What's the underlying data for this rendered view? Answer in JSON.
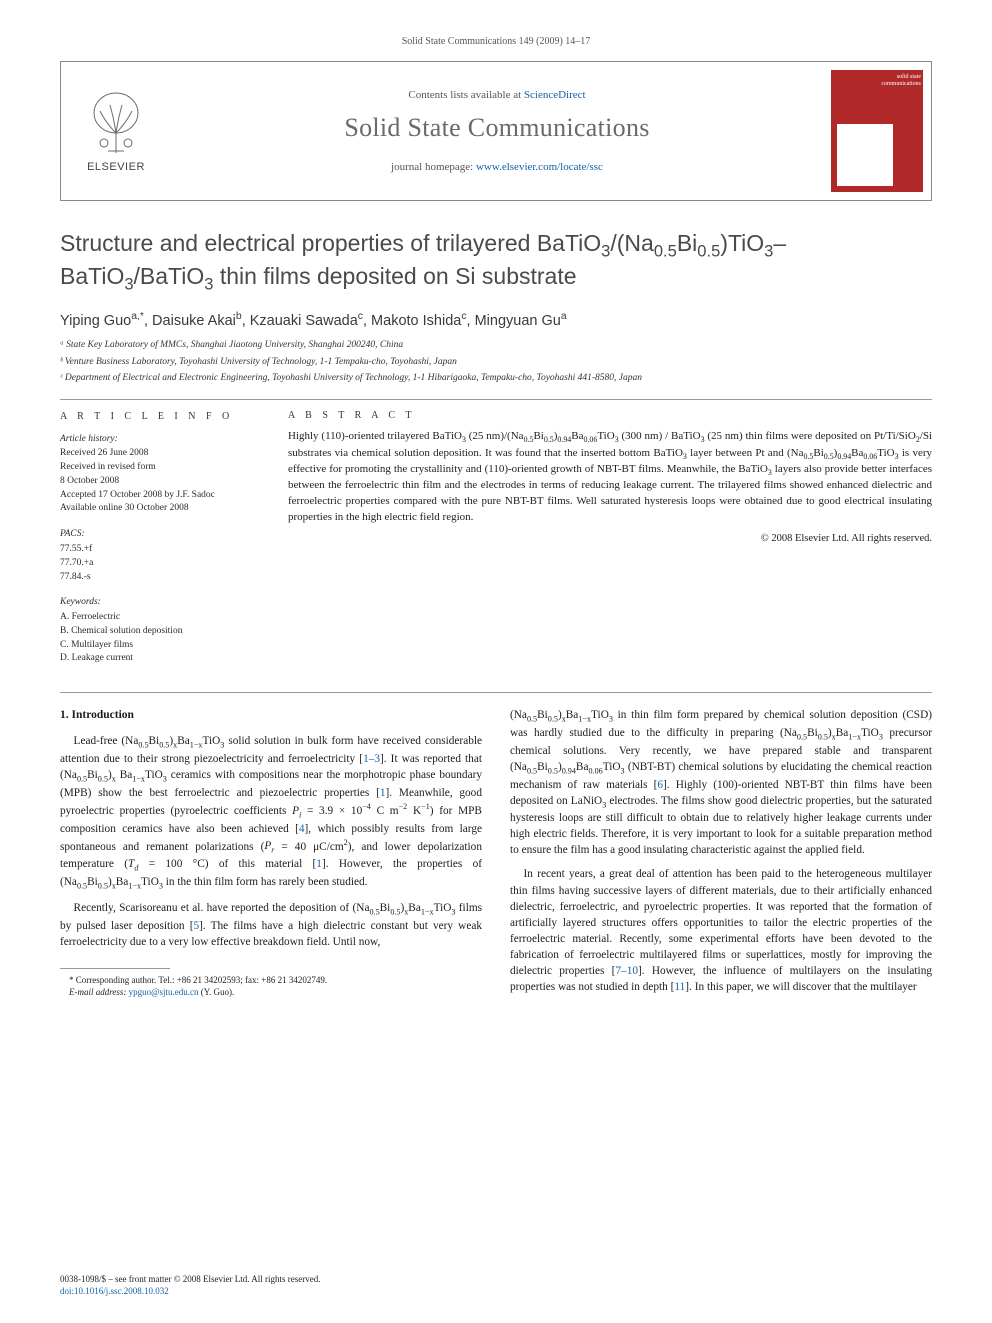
{
  "running_head": "Solid State Communications 149 (2009) 14–17",
  "journal_box": {
    "contents_prefix": "Contents lists available at ",
    "contents_link": "ScienceDirect",
    "journal_name": "Solid State Communications",
    "homepage_prefix": "journal homepage: ",
    "homepage_link": "www.elsevier.com/locate/ssc",
    "publisher": "ELSEVIER",
    "cover_words": "solid state communications"
  },
  "title_html": "Structure and electrical properties of trilayered BaTiO<sub>3</sub>/(Na<sub>0.5</sub>Bi<sub>0.5</sub>)TiO<sub>3</sub>–BaTiO<sub>3</sub>/BaTiO<sub>3</sub> thin films deposited on Si substrate",
  "authors_html": "Yiping Guo<sup>a,*</sup>, Daisuke Akai<sup>b</sup>, Kzauaki Sawada<sup>c</sup>, Makoto Ishida<sup>c</sup>, Mingyuan Gu<sup>a</sup>",
  "affiliations": [
    "ᵃ State Key Laboratory of MMCs, Shanghai Jiaotong University, Shanghai 200240, China",
    "ᵇ Venture Business Laboratory, Toyohashi University of Technology, 1-1 Tempaku-cho, Toyohashi, Japan",
    "ᶜ Department of Electrical and Electronic Engineering, Toyohashi University of Technology, 1-1 Hibarigaoka, Tempaku-cho, Toyohashi 441-8580, Japan"
  ],
  "info_heading": "A R T I C L E   I N F O",
  "abstract_heading": "A B S T R A C T",
  "history_label": "Article history:",
  "history_lines": [
    "Received 26 June 2008",
    "Received in revised form",
    "8 October 2008",
    "Accepted 17 October 2008 by J.F. Sadoc",
    "Available online 30 October 2008"
  ],
  "pacs_label": "PACS:",
  "pacs_lines": [
    "77.55.+f",
    "77.70.+a",
    "77.84.-s"
  ],
  "keywords_label": "Keywords:",
  "keywords_lines": [
    "A. Ferroelectric",
    "B. Chemical solution deposition",
    "C. Multilayer films",
    "D. Leakage current"
  ],
  "abstract_html": "Highly (110)-oriented trilayered BaTiO<sub>3</sub> (25 nm)/(Na<sub>0.5</sub>Bi<sub>0.5</sub>)<sub>0.94</sub>Ba<sub>0.06</sub>TiO<sub>3</sub> (300 nm) / BaTiO<sub>3</sub> (25 nm) thin films were deposited on Pt/Ti/SiO<sub>2</sub>/Si substrates via chemical solution deposition. It was found that the inserted bottom BaTiO<sub>3</sub> layer between Pt and (Na<sub>0.5</sub>Bi<sub>0.5</sub>)<sub>0.94</sub>Ba<sub>0.06</sub>TiO<sub>3</sub> is very effective for promoting the crystallinity and (110)-oriented growth of NBT-BT films. Meanwhile, the BaTiO<sub>3</sub> layers also provide better interfaces between the ferroelectric thin film and the electrodes in terms of reducing leakage current. The trilayered films showed enhanced dielectric and ferroelectric properties compared with the pure NBT-BT films. Well saturated hysteresis loops were obtained due to good electrical insulating properties in the high electric field region.",
  "copyright": "© 2008 Elsevier Ltd. All rights reserved.",
  "section_heading": "1. Introduction",
  "col1_paras_html": [
    "Lead-free (Na<sub>0.5</sub>Bi<sub>0.5</sub>)<sub>x</sub>Ba<sub>1−x</sub>TiO<sub>3</sub> solid solution in bulk form have received considerable attention due to their strong piezoelectricity and ferroelectricity [<span class='ref'>1–3</span>]. It was reported that (Na<sub>0.5</sub>Bi<sub>0.5</sub>)<sub>x</sub> Ba<sub>1−x</sub>TiO<sub>3</sub> ceramics with compositions near the morphotropic phase boundary (MPB) show the best ferroelectric and piezoelectric properties [<span class='ref'>1</span>]. Meanwhile, good pyroelectric properties (pyroelectric coefficients <i>P<sub>i</sub></i> = 3.9 × 10<sup>−4</sup> C m<sup>−2</sup> K<sup>−1</sup>) for MPB composition ceramics have also been achieved [<span class='ref'>4</span>], which possibly results from large spontaneous and remanent polarizations (<i>P<sub>r</sub></i> = 40 μC/cm<sup>2</sup>), and lower depolarization temperature (<i>T<sub>d</sub></i> = 100 °C) of this material [<span class='ref'>1</span>]. However, the properties of (Na<sub>0.5</sub>Bi<sub>0.5</sub>)<sub>x</sub>Ba<sub>1−x</sub>TiO<sub>3</sub> in the thin film form has rarely been studied.",
    "Recently, Scarisoreanu et al. have reported the deposition of (Na<sub>0.5</sub>Bi<sub>0.5</sub>)<sub>x</sub>Ba<sub>1−x</sub>TiO<sub>3</sub> films by pulsed laser deposition [<span class='ref'>5</span>]. The films have a high dielectric constant but very weak ferroelectricity due to a very low effective breakdown field. Until now,"
  ],
  "col2_paras_html": [
    "(Na<sub>0.5</sub>Bi<sub>0.5</sub>)<sub>x</sub>Ba<sub>1−x</sub>TiO<sub>3</sub> in thin film form prepared by chemical solution deposition (CSD) was hardly studied due to the difficulty in preparing (Na<sub>0.5</sub>Bi<sub>0.5</sub>)<sub>x</sub>Ba<sub>1−x</sub>TiO<sub>3</sub> precursor chemical solutions. Very recently, we have prepared stable and transparent (Na<sub>0.5</sub>Bi<sub>0.5</sub>)<sub>0.94</sub>Ba<sub>0.06</sub>TiO<sub>3</sub> (NBT-BT) chemical solutions by elucidating the chemical reaction mechanism of raw materials [<span class='ref'>6</span>]. Highly (100)-oriented NBT-BT thin films have been deposited on LaNiO<sub>3</sub> electrodes. The films show good dielectric properties, but the saturated hysteresis loops are still difficult to obtain due to relatively higher leakage currents under high electric fields. Therefore, it is very important to look for a suitable preparation method to ensure the film has a good insulating characteristic against the applied field.",
    "In recent years, a great deal of attention has been paid to the heterogeneous multilayer thin films having successive layers of different materials, due to their artificially enhanced dielectric, ferroelectric, and pyroelectric properties. It was reported that the formation of artificially layered structures offers opportunities to tailor the electric properties of the ferroelectric material. Recently, some experimental efforts have been devoted to the fabrication of ferroelectric multilayered films or superlattices, mostly for improving the dielectric properties [<span class='ref'>7–10</span>]. However, the influence of multilayers on the insulating properties was not studied in depth [<span class='ref'>11</span>]. In this paper, we will discover that the multilayer"
  ],
  "footnote_lines": [
    "* Corresponding author. Tel.: +86 21 34202593; fax: +86 21 34202749.",
    "E-mail address: ypguo@sjtu.edu.cn (Y. Guo)."
  ],
  "footer_lines": [
    "0038-1098/$ – see front matter © 2008 Elsevier Ltd. All rights reserved.",
    "doi:10.1016/j.ssc.2008.10.032"
  ],
  "colors": {
    "link": "#1461a8",
    "text": "#2a2a2a",
    "title_gray": "#4a4a4a",
    "rule": "#999999",
    "cover_red": "#b02828"
  }
}
